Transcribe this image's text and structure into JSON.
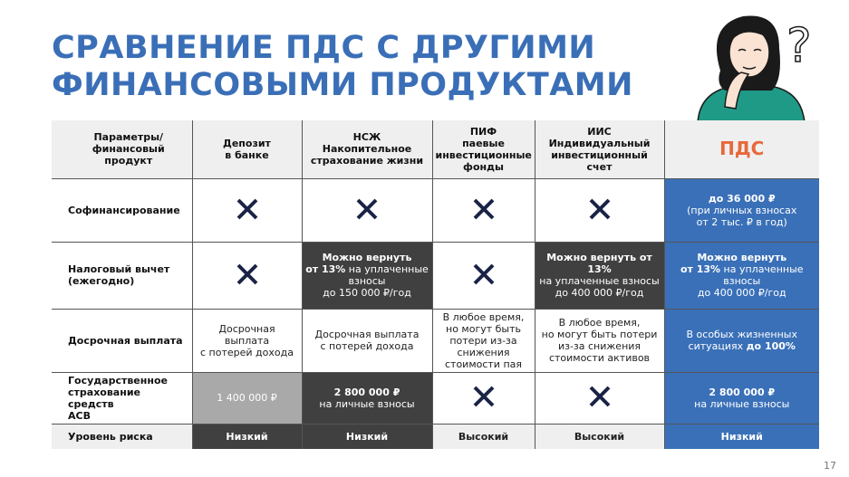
{
  "title": [
    "СРАВНЕНИЕ ПДС С ДРУГИМИ",
    "ФИНАНСОВЫМИ ПРОДУКТАМИ"
  ],
  "page_number": "17",
  "colors": {
    "title": "#3a6fb7",
    "pds_header": "#e8683a",
    "blue": "#3a70b8",
    "dark": "#404040",
    "gray": "#a9a9a9",
    "cross": "#1a2346"
  },
  "columns": [
    {
      "lines": [
        "Параметры/",
        "финансовый продукт"
      ]
    },
    {
      "lines": [
        "Депозит",
        "в банке"
      ]
    },
    {
      "lines": [
        "НСЖ",
        "Накопительное",
        "страхование жизни"
      ]
    },
    {
      "lines": [
        "ПИФ",
        "паевые",
        "инвестиционные",
        "фонды"
      ]
    },
    {
      "lines": [
        "ИИС",
        "Индивидуальный",
        "инвестиционный счет"
      ]
    },
    {
      "lines": [
        "ПДС"
      ]
    }
  ],
  "rows": [
    {
      "label": [
        "Софинансирование"
      ],
      "cells": [
        {
          "type": "cross",
          "bg": "white"
        },
        {
          "type": "cross",
          "bg": "white"
        },
        {
          "type": "cross",
          "bg": "white"
        },
        {
          "type": "cross",
          "bg": "white"
        },
        {
          "type": "text",
          "bg": "blue",
          "lines": [
            [
              {
                "t": "до 36 000 ₽",
                "b": true
              }
            ],
            [
              {
                "t": "(при личных взносах"
              }
            ],
            [
              {
                "t": "от 2 тыс. ₽ в год)"
              }
            ]
          ]
        }
      ]
    },
    {
      "label": [
        "Налоговый вычет",
        "(ежегодно)"
      ],
      "cells": [
        {
          "type": "cross",
          "bg": "white"
        },
        {
          "type": "text",
          "bg": "dark",
          "lines": [
            [
              {
                "t": "Можно вернуть",
                "b": true
              }
            ],
            [
              {
                "t": "от 13%",
                "b": true
              },
              {
                "t": " на уплаченные"
              }
            ],
            [
              {
                "t": "взносы"
              }
            ],
            [
              {
                "t": "до 150 000 ₽/год"
              }
            ]
          ]
        },
        {
          "type": "cross",
          "bg": "white"
        },
        {
          "type": "text",
          "bg": "dark",
          "lines": [
            [
              {
                "t": "Можно вернуть от 13%",
                "b": true
              }
            ],
            [
              {
                "t": "на уплаченные взносы"
              }
            ],
            [
              {
                "t": "до 400 000 ₽/год"
              }
            ]
          ]
        },
        {
          "type": "text",
          "bg": "blue",
          "lines": [
            [
              {
                "t": "Можно вернуть",
                "b": true
              }
            ],
            [
              {
                "t": "от 13%",
                "b": true
              },
              {
                "t": " на уплаченные"
              }
            ],
            [
              {
                "t": "взносы"
              }
            ],
            [
              {
                "t": "до 400 000 ₽/год"
              }
            ]
          ]
        }
      ]
    },
    {
      "label": [
        "Досрочная выплата"
      ],
      "cells": [
        {
          "type": "text",
          "bg": "white",
          "lines": [
            [
              {
                "t": "Досрочная выплата"
              }
            ],
            [
              {
                "t": "с потерей дохода"
              }
            ]
          ]
        },
        {
          "type": "text",
          "bg": "white",
          "lines": [
            [
              {
                "t": "Досрочная выплата"
              }
            ],
            [
              {
                "t": "с потерей дохода"
              }
            ]
          ]
        },
        {
          "type": "text",
          "bg": "white",
          "lines": [
            [
              {
                "t": "В любое время,"
              }
            ],
            [
              {
                "t": "но могут быть"
              }
            ],
            [
              {
                "t": "потери из-за"
              }
            ],
            [
              {
                "t": "снижения"
              }
            ],
            [
              {
                "t": "стоимости пая"
              }
            ]
          ]
        },
        {
          "type": "text",
          "bg": "white",
          "lines": [
            [
              {
                "t": "В любое время,"
              }
            ],
            [
              {
                "t": "но могут быть потери"
              }
            ],
            [
              {
                "t": "из-за снижения"
              }
            ],
            [
              {
                "t": "стоимости активов"
              }
            ]
          ]
        },
        {
          "type": "text",
          "bg": "blue",
          "lines": [
            [
              {
                "t": "В особых жизненных"
              }
            ],
            [
              {
                "t": "ситуациях "
              },
              {
                "t": "до 100%",
                "b": true
              }
            ]
          ]
        }
      ]
    },
    {
      "label": [
        "Государственное",
        "страхование средств",
        "АСВ"
      ],
      "cells": [
        {
          "type": "text",
          "bg": "gray",
          "lines": [
            [
              {
                "t": "1 400 000 ₽"
              }
            ]
          ]
        },
        {
          "type": "text",
          "bg": "dark",
          "lines": [
            [
              {
                "t": "2 800 000 ₽",
                "b": true
              }
            ],
            [
              {
                "t": "на личные взносы"
              }
            ]
          ]
        },
        {
          "type": "cross",
          "bg": "white"
        },
        {
          "type": "cross",
          "bg": "white"
        },
        {
          "type": "text",
          "bg": "blue",
          "lines": [
            [
              {
                "t": "2 800 000 ₽",
                "b": true
              }
            ],
            [
              {
                "t": "на личные взносы"
              }
            ]
          ]
        }
      ]
    },
    {
      "label": [
        "Уровень риска"
      ],
      "light": true,
      "cells": [
        {
          "type": "text",
          "bg": "dark",
          "lines": [
            [
              {
                "t": "Низкий",
                "b": true
              }
            ]
          ]
        },
        {
          "type": "text",
          "bg": "dark",
          "lines": [
            [
              {
                "t": "Низкий",
                "b": true
              }
            ]
          ]
        },
        {
          "type": "text",
          "bg": "light",
          "lines": [
            [
              {
                "t": "Высокий",
                "b": true
              }
            ]
          ]
        },
        {
          "type": "text",
          "bg": "light",
          "lines": [
            [
              {
                "t": "Высокий",
                "b": true
              }
            ]
          ]
        },
        {
          "type": "text",
          "bg": "blue",
          "lines": [
            [
              {
                "t": "Низкий",
                "b": true
              }
            ]
          ]
        }
      ]
    }
  ]
}
